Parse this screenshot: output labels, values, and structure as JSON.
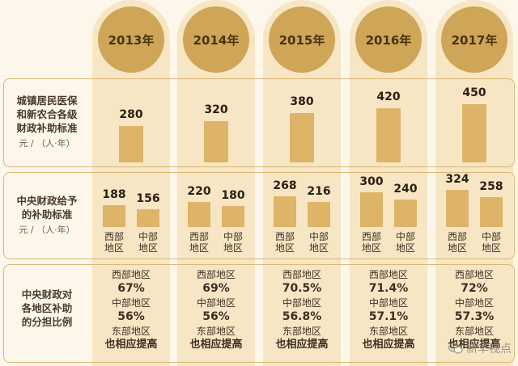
{
  "chart_data": {
    "type": "bar",
    "categories": [
      "2013年",
      "2014年",
      "2015年",
      "2016年",
      "2017年"
    ],
    "rows": [
      {
        "label_lines": [
          "城镇居民医保",
          "和新农合各级",
          "财政补助标准"
        ],
        "unit": "元 / （人·年）",
        "series": [
          {
            "values": [
              280,
              320,
              380,
              420,
              450
            ]
          }
        ],
        "ylim": [
          0,
          450
        ]
      },
      {
        "label_lines": [
          "中央财政给予",
          "的补助标准"
        ],
        "unit": "元 / （人·年）",
        "series": [
          {
            "name_lines": [
              "西部",
              "地区"
            ],
            "values": [
              188,
              220,
              268,
              300,
              324
            ]
          },
          {
            "name_lines": [
              "中部",
              "地区"
            ],
            "values": [
              156,
              180,
              216,
              240,
              258
            ]
          }
        ],
        "ylim": [
          0,
          324
        ]
      }
    ],
    "share_row": {
      "label_lines": [
        "中央财政对",
        "各地区补助",
        "的分担比例"
      ],
      "west_label": "西部地区",
      "west": [
        "67%",
        "69%",
        "70.5%",
        "71.4%",
        "72%"
      ],
      "central_label": "中部地区",
      "central": [
        "56%",
        "56%",
        "56.8%",
        "57.1%",
        "57.3%"
      ],
      "east_label": "东部地区",
      "east_note": "也相应提高"
    }
  },
  "watermark": {
    "text": "新华视点",
    "icon": "wechat-icon"
  },
  "colors": {
    "bar": "#ddb468",
    "badge": "#cfa558",
    "column": "#f6e6c4",
    "border": "#d9b777"
  }
}
